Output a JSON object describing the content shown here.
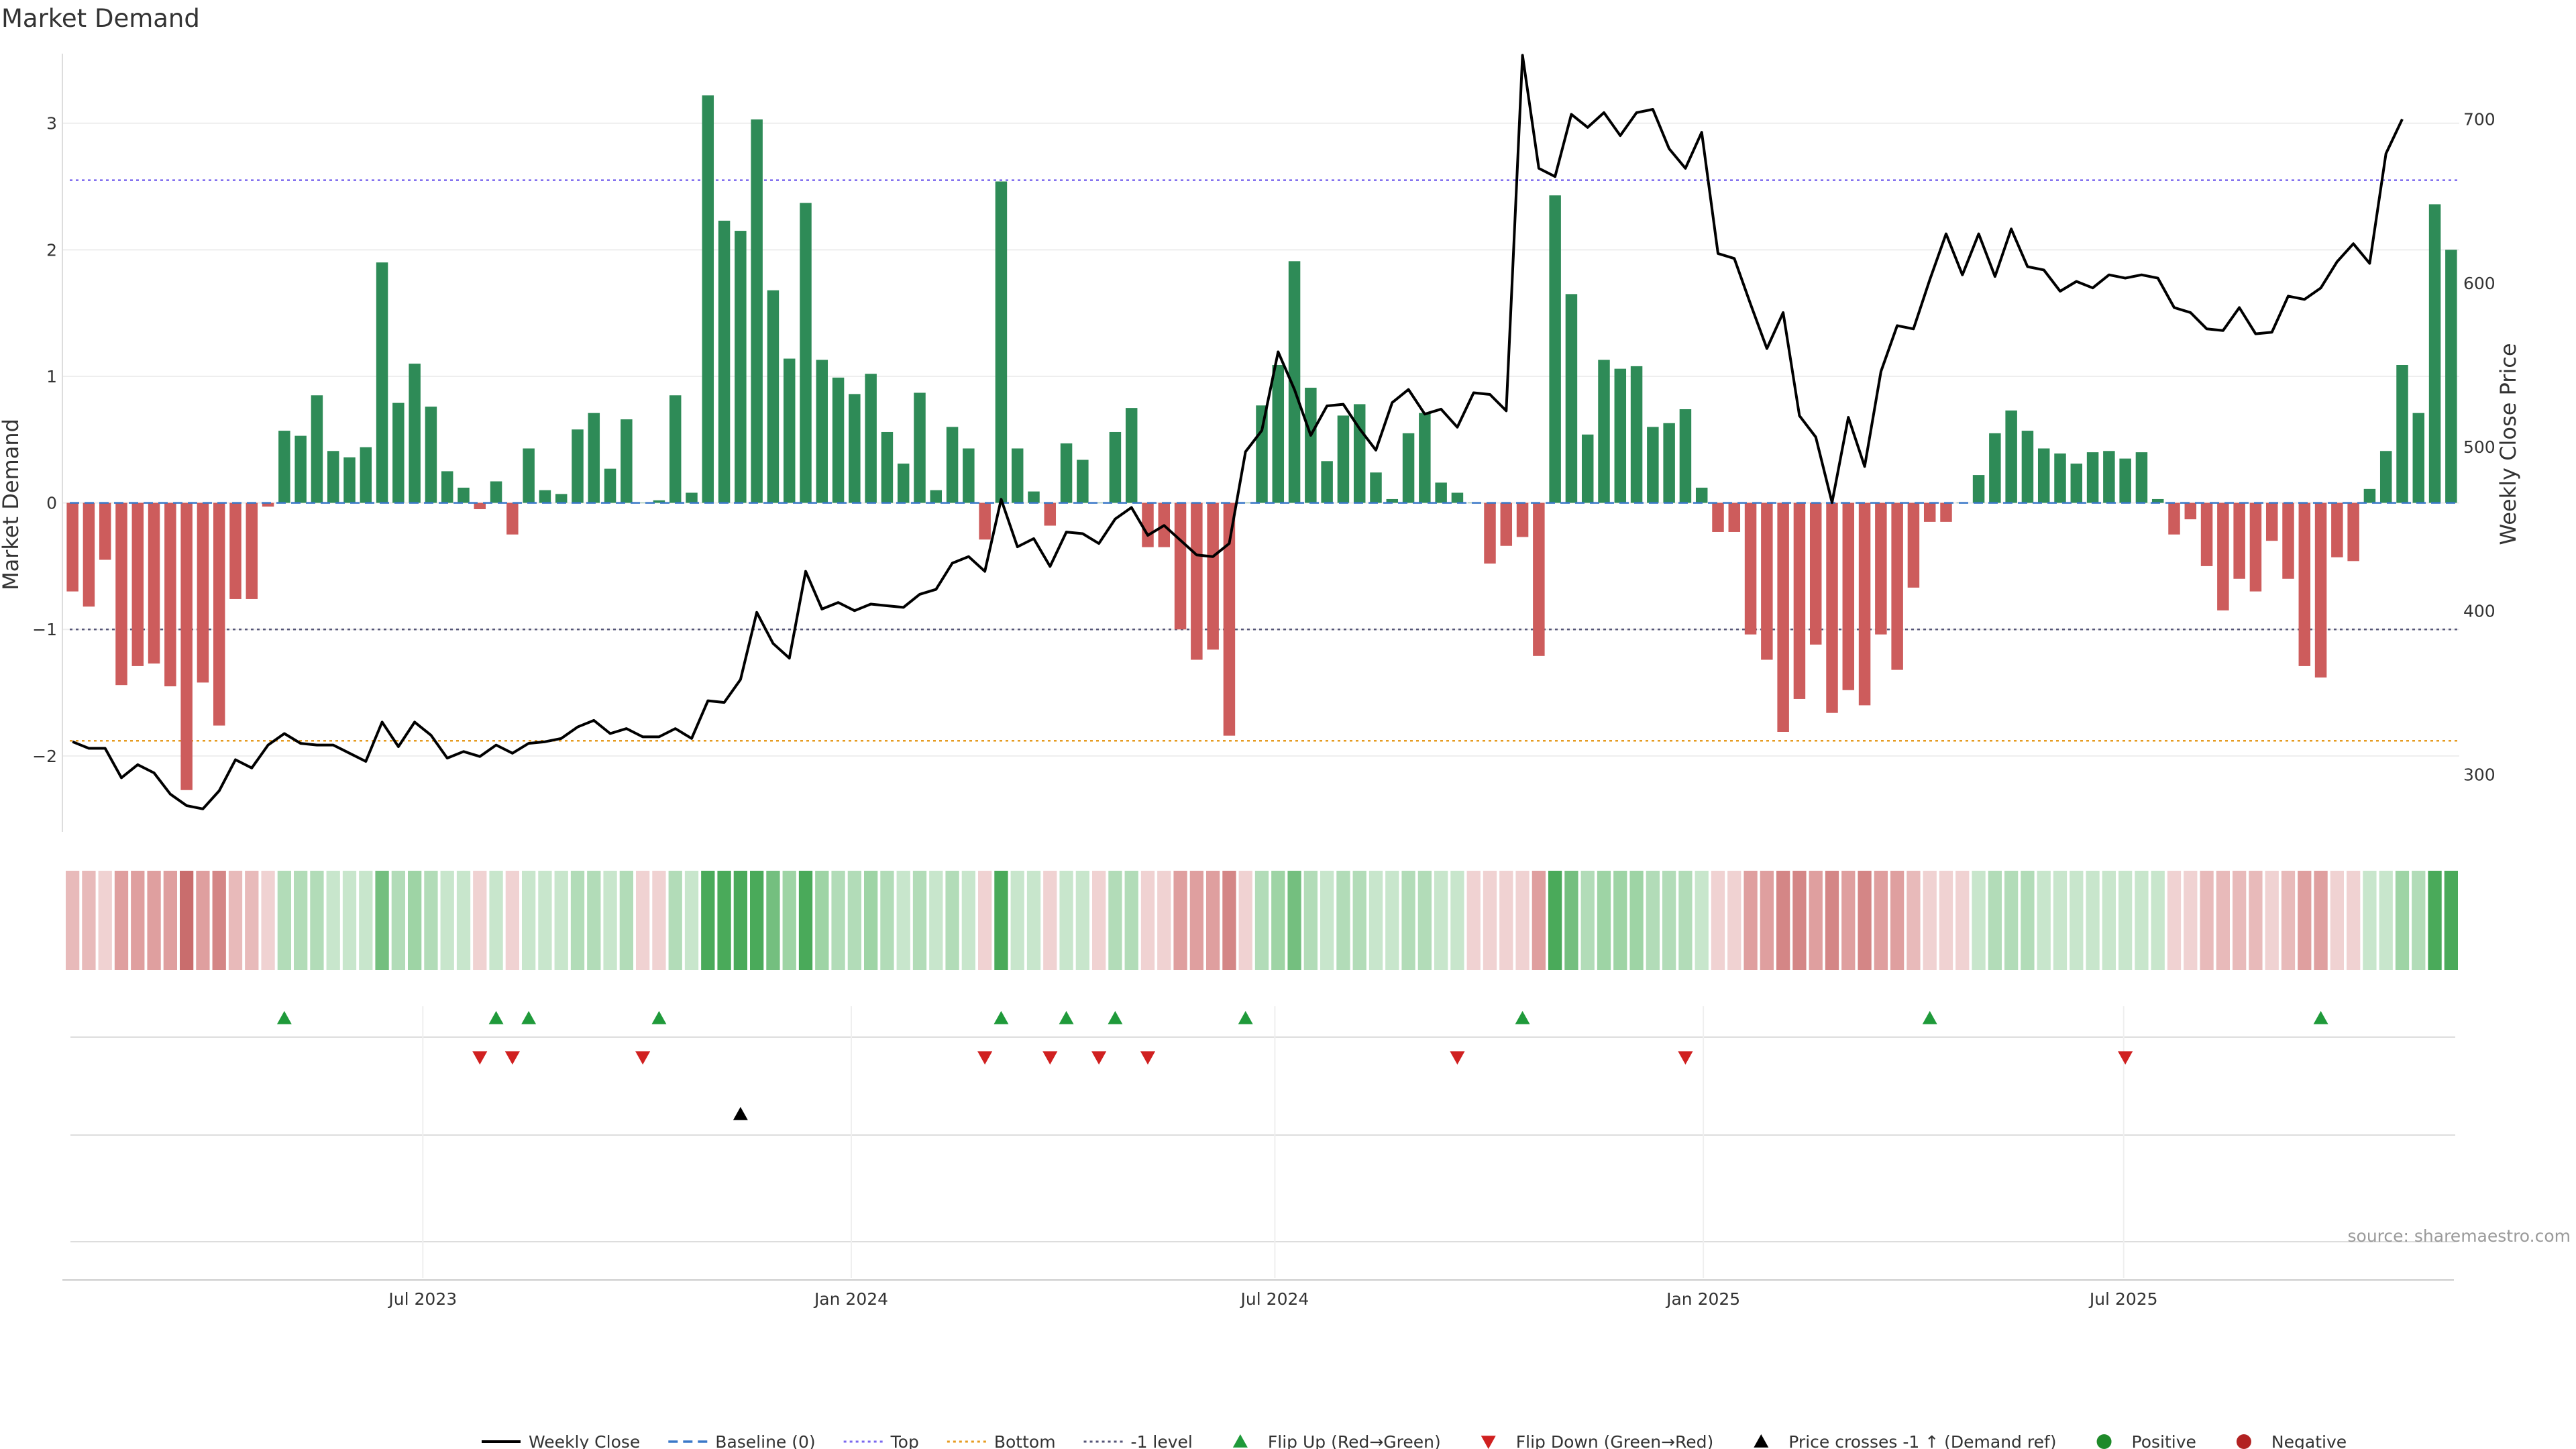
{
  "title": "Market Demand",
  "source_text": "source: sharemaestro.com",
  "colors": {
    "positive": "#2e8b57",
    "negative": "#cd5c5c",
    "price": "#000000",
    "top": "#7b68ee",
    "bottom": "#e69b20",
    "minus1": "#555577",
    "baseline": "#3a78c8",
    "flip_up": "#1f9a3a",
    "flip_down": "#d02020",
    "cross": "#000000",
    "dot_pos": "#1f8a2a",
    "dot_neg": "#b22222"
  },
  "chart_data": {
    "type": "bar",
    "ylabel": "Market Demand",
    "y2label": "Weekly Close Price",
    "ylim": [
      -2.6,
      3.55
    ],
    "y2lim": [
      265,
      740
    ],
    "yticks": [
      3,
      2,
      1,
      0,
      -1,
      -2
    ],
    "ytick_labels": [
      "3",
      "2",
      "1",
      "0",
      "−1",
      "−2"
    ],
    "y2ticks": [
      700,
      600,
      500,
      400,
      300
    ],
    "xlim": [
      0,
      144
    ],
    "xticks": [
      {
        "week": 22,
        "label": "Jul 2023"
      },
      {
        "week": 48.3,
        "label": "Jan 2024"
      },
      {
        "week": 74.3,
        "label": "Jul 2024"
      },
      {
        "week": 100.6,
        "label": "Jan 2025"
      },
      {
        "week": 126.4,
        "label": "Jul 2025"
      }
    ],
    "reference_lines": {
      "top": 2.55,
      "bottom": -1.88,
      "minus1": -1.0,
      "baseline": 0
    },
    "demand": [
      -0.7,
      -0.82,
      -0.45,
      -1.44,
      -1.29,
      -1.27,
      -1.45,
      -2.27,
      -1.42,
      -1.76,
      -0.76,
      -0.76,
      -0.03,
      0.57,
      0.53,
      0.85,
      0.41,
      0.36,
      0.44,
      1.9,
      0.79,
      1.1,
      0.76,
      0.25,
      0.12,
      -0.05,
      0.17,
      -0.25,
      0.43,
      0.1,
      0.07,
      0.58,
      0.71,
      0.27,
      0.66,
      0,
      0.02,
      0.85,
      0.08,
      3.22,
      2.23,
      2.15,
      3.03,
      1.68,
      1.14,
      2.37,
      1.13,
      0.99,
      0.86,
      1.02,
      0.56,
      0.31,
      0.87,
      0.1,
      0.6,
      0.43,
      -0.29,
      2.54,
      0.43,
      0.09,
      -0.18,
      0.47,
      0.34,
      0,
      0.56,
      0.75,
      -0.35,
      -0.35,
      -1.0,
      -1.24,
      -1.16,
      -1.84,
      0,
      0.77,
      1.09,
      1.91,
      0.91,
      0.33,
      0.69,
      0.78,
      0.24,
      0.03,
      0.55,
      0.71,
      0.16,
      0.08,
      0,
      -0.48,
      -0.34,
      -0.27,
      -1.21,
      2.43,
      1.65,
      0.54,
      1.13,
      1.06,
      1.08,
      0.6,
      0.63,
      0.74,
      0.12,
      -0.23,
      -0.23,
      -1.04,
      -1.24,
      -1.81,
      -1.55,
      -1.12,
      -1.66,
      -1.48,
      -1.6,
      -1.04,
      -1.32,
      -0.67,
      -0.15,
      -0.15,
      0,
      0.22,
      0.55,
      0.73,
      0.57,
      0.43,
      0.39,
      0.31,
      0.4,
      0.41,
      0.35,
      0.4,
      0.03,
      -0.25,
      -0.13,
      -0.5,
      -0.85,
      -0.6,
      -0.7,
      -0.3,
      -0.6,
      -1.29,
      -1.38,
      -0.43,
      -0.46,
      0.11,
      0.41,
      1.09,
      0.71,
      2.36,
      2.0
    ],
    "price": [
      320,
      316,
      316,
      298,
      306,
      301,
      288,
      281,
      279,
      290,
      309,
      304,
      318,
      325,
      319,
      318,
      318,
      313,
      308,
      332,
      317,
      332,
      324,
      310,
      314,
      311,
      318,
      313,
      319,
      320,
      322,
      329,
      333,
      325,
      328,
      323,
      323,
      328,
      322,
      345,
      344,
      358,
      399,
      380,
      371,
      424,
      401,
      405,
      400,
      404,
      403,
      402,
      410,
      413,
      429,
      433,
      424,
      468,
      439,
      444,
      427,
      448,
      447,
      441,
      456,
      463,
      446,
      452,
      443,
      434,
      433,
      441,
      497,
      510,
      558,
      535,
      507,
      525,
      526,
      511,
      498,
      527,
      535,
      520,
      523,
      512,
      533,
      532,
      522,
      739,
      670,
      665,
      703,
      695,
      704,
      690,
      704,
      706,
      682,
      670,
      692,
      618,
      615,
      587,
      560,
      582,
      519,
      506,
      466,
      518,
      488,
      546,
      574,
      572,
      602,
      630,
      605,
      630,
      604,
      633,
      610,
      608,
      595,
      601,
      597,
      605,
      603,
      605,
      603,
      585,
      582,
      572,
      571,
      585,
      569,
      570,
      592,
      590,
      597,
      613,
      624,
      612,
      679,
      700
    ]
  },
  "strip_label_rows": [
    "Flip Up (Red→Green)",
    "Flip Down (Green→Red)",
    "Price crosses -1 ↑ (Demand ref)"
  ],
  "flip_up_weeks": [
    13,
    26,
    28,
    36,
    57,
    61,
    64,
    72,
    89,
    114,
    138
  ],
  "flip_down_weeks": [
    25,
    27,
    35,
    56,
    60,
    63,
    66,
    85,
    99,
    126
  ],
  "cross_weeks": [
    41
  ],
  "legend": [
    {
      "label": "Weekly Close",
      "kind": "line",
      "color": "#000000"
    },
    {
      "label": "Baseline (0)",
      "kind": "dash",
      "color": "#3a78c8"
    },
    {
      "label": "Top",
      "kind": "dot",
      "color": "#7b68ee"
    },
    {
      "label": "Bottom",
      "kind": "dot",
      "color": "#e69b20"
    },
    {
      "label": "-1 level",
      "kind": "dot",
      "color": "#555577"
    },
    {
      "label": "Flip Up (Red→Green)",
      "kind": "tri-up",
      "color": "#1f9a3a"
    },
    {
      "label": "Flip Down (Green→Red)",
      "kind": "tri-down",
      "color": "#d02020"
    },
    {
      "label": "Price crosses -1 ↑ (Demand ref)",
      "kind": "tri-up",
      "color": "#000000"
    },
    {
      "label": "Positive",
      "kind": "circle",
      "color": "#1f8a2a"
    },
    {
      "label": "Negative",
      "kind": "circle",
      "color": "#b22222"
    }
  ]
}
